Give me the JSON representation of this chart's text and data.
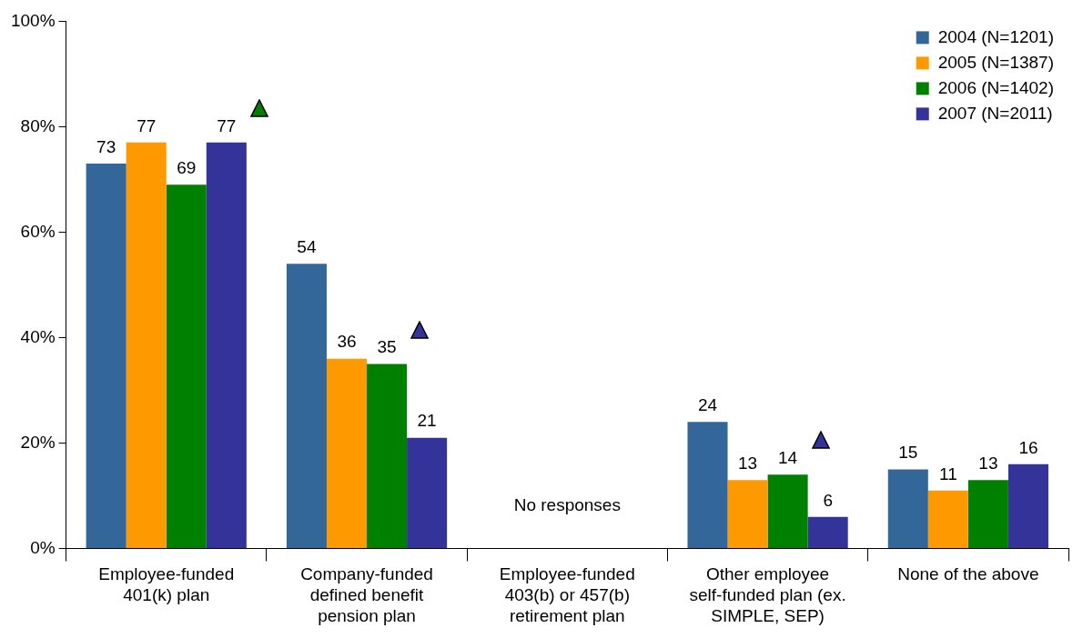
{
  "chart_data": {
    "type": "bar",
    "categories": [
      "Employee-funded 401(k) plan",
      "Company-funded defined benefit pension plan",
      "Employee-funded 403(b) or 457(b) retirement plan",
      "Other employee self-funded plan (ex. SIMPLE, SEP)",
      "None of the above"
    ],
    "series": [
      {
        "name": "2004 (N=1201)",
        "color": "#336699",
        "values": [
          73,
          54,
          null,
          24,
          15
        ]
      },
      {
        "name": "2005 (N=1387)",
        "color": "#ff9900",
        "values": [
          77,
          36,
          null,
          13,
          11
        ]
      },
      {
        "name": "2006 (N=1402)",
        "color": "#008000",
        "values": [
          69,
          35,
          null,
          14,
          13
        ]
      },
      {
        "name": "2007 (N=2011)",
        "color": "#333399",
        "values": [
          77,
          21,
          null,
          6,
          16
        ]
      }
    ],
    "ylim": [
      0,
      100
    ],
    "yticks": [
      {
        "value": 0,
        "label": "0%"
      },
      {
        "value": 20,
        "label": "20%"
      },
      {
        "value": 40,
        "label": "40%"
      },
      {
        "value": 60,
        "label": "60%"
      },
      {
        "value": 80,
        "label": "80%"
      },
      {
        "value": 100,
        "label": "100%"
      }
    ],
    "data_labels": true,
    "legend": "top right",
    "grid": false,
    "annotations": [
      "No responses"
    ]
  }
}
